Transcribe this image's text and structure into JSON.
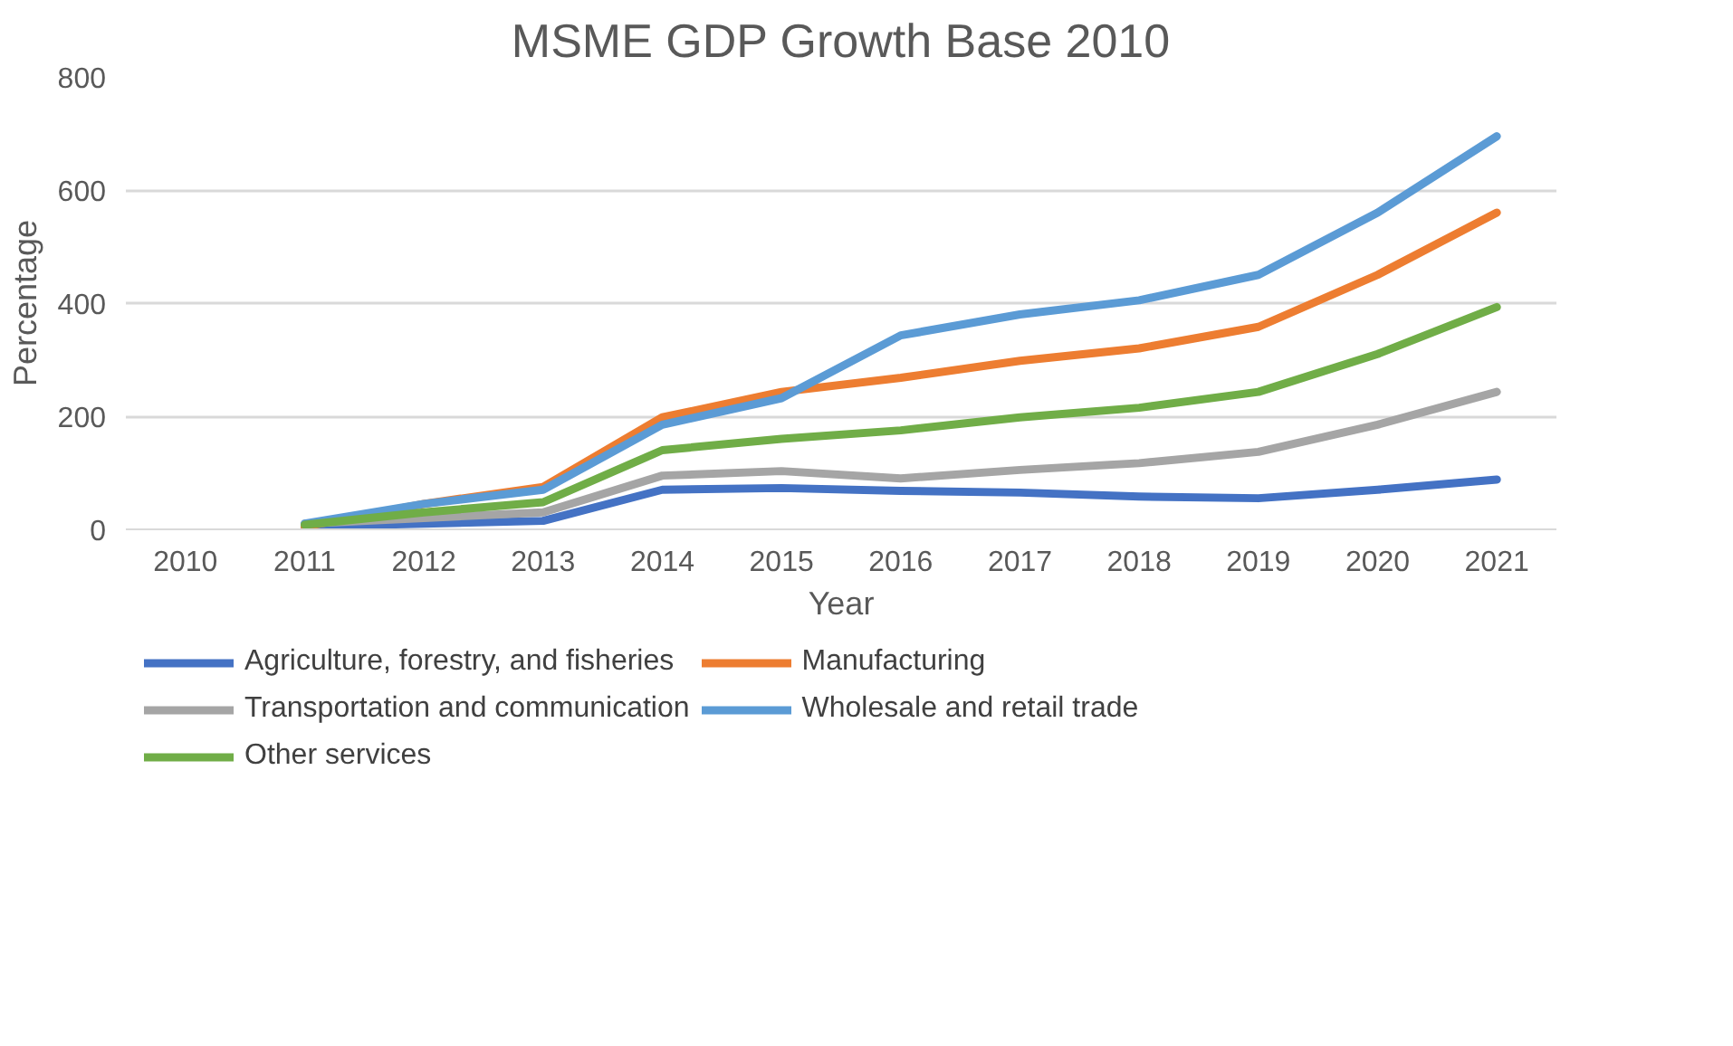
{
  "chart_data": {
    "type": "line",
    "title": "MSME GDP Growth Base 2010",
    "xlabel": "Year",
    "ylabel": "Percentage",
    "categories": [
      "2010",
      "2011",
      "2012",
      "2013",
      "2014",
      "2015",
      "2016",
      "2017",
      "2018",
      "2019",
      "2020",
      "2021"
    ],
    "series": [
      {
        "name": "Agriculture, forestry, and fisheries",
        "color": "#4472c4",
        "values": [
          null,
          5,
          10,
          15,
          70,
          73,
          68,
          65,
          58,
          55,
          70,
          88
        ]
      },
      {
        "name": "Manufacturing",
        "color": "#ed7d31",
        "values": [
          null,
          5,
          45,
          75,
          198,
          243,
          268,
          298,
          320,
          358,
          450,
          560
        ]
      },
      {
        "name": "Transportation and communication",
        "color": "#a5a5a5",
        "values": [
          null,
          10,
          20,
          30,
          95,
          103,
          90,
          105,
          117,
          137,
          185,
          243
        ]
      },
      {
        "name": "Wholesale and retail trade",
        "color": "#5b9bd5",
        "values": [
          null,
          10,
          45,
          70,
          185,
          232,
          343,
          380,
          405,
          450,
          560,
          695
        ]
      },
      {
        "name": "Other services",
        "color": "#70ad47",
        "values": [
          null,
          8,
          30,
          48,
          140,
          160,
          175,
          198,
          215,
          243,
          310,
          393
        ]
      }
    ],
    "ylim": [
      0,
      800
    ],
    "yticks": [
      0,
      200,
      400,
      600,
      800
    ],
    "grid": "y",
    "legend": "bottom",
    "marker": "none",
    "line_style": "solid"
  }
}
